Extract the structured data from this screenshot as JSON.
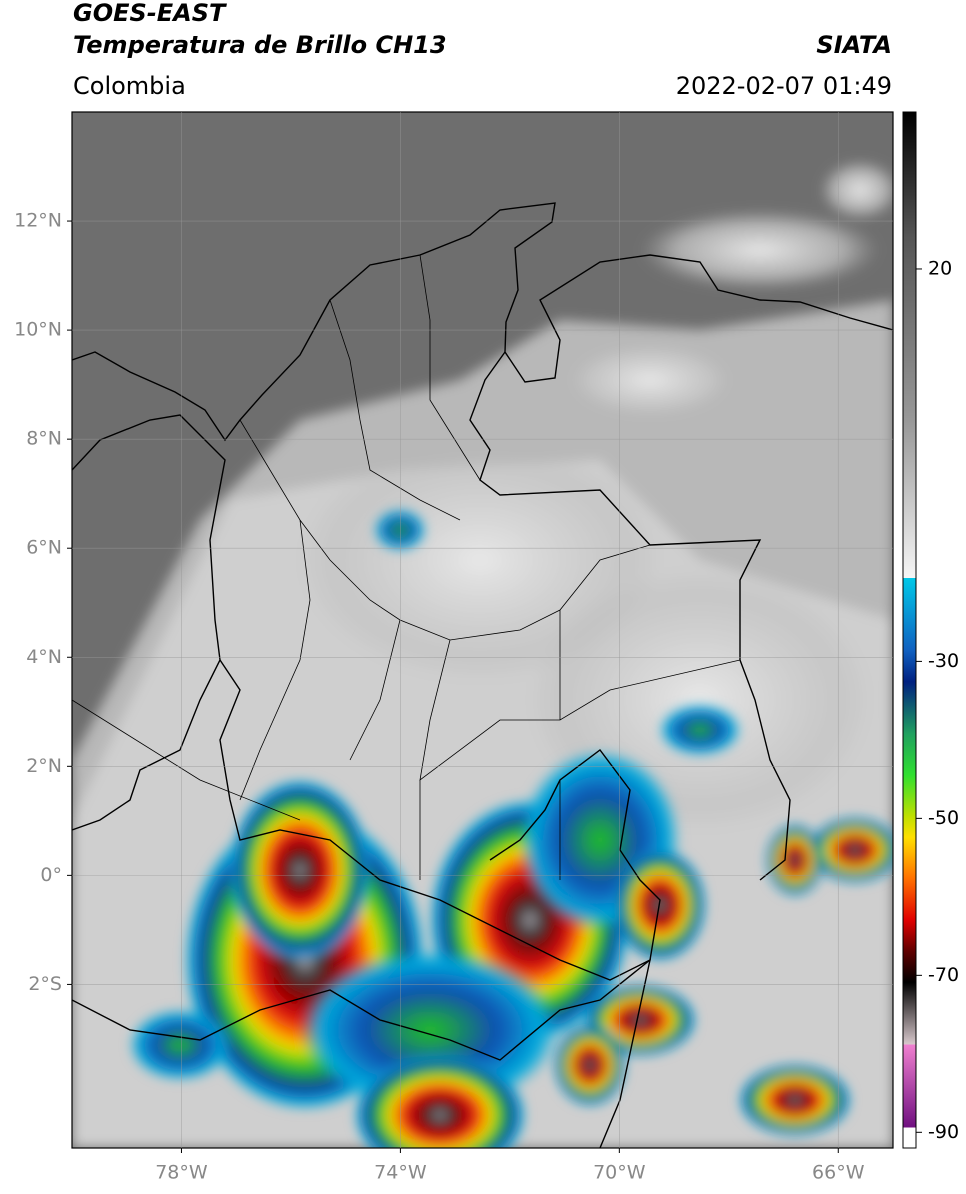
{
  "header": {
    "satellite": "GOES-EAST",
    "product": "Temperatura de Brillo CH13",
    "source": "SIATA",
    "region": "Colombia",
    "datetime": "2022-02-07 01:49"
  },
  "map": {
    "lon_range": [
      -80,
      -65
    ],
    "lat_range": [
      -5,
      14
    ],
    "lon_ticks": [
      {
        "value": -78,
        "label": "78°W"
      },
      {
        "value": -74,
        "label": "74°W"
      },
      {
        "value": -70,
        "label": "70°W"
      },
      {
        "value": -66,
        "label": "66°W"
      }
    ],
    "lat_ticks": [
      {
        "value": 12,
        "label": "12°N"
      },
      {
        "value": 10,
        "label": "10°N"
      },
      {
        "value": 8,
        "label": "8°N"
      },
      {
        "value": 6,
        "label": "6°N"
      },
      {
        "value": 4,
        "label": "4°N"
      },
      {
        "value": 2,
        "label": "2°N"
      },
      {
        "value": 0,
        "label": "0°"
      },
      {
        "value": -2,
        "label": "2°S"
      }
    ],
    "grid": true
  },
  "colorbar": {
    "range": [
      -92,
      40
    ],
    "ticks": [
      20,
      -30,
      -50,
      -70,
      -90
    ]
  }
}
